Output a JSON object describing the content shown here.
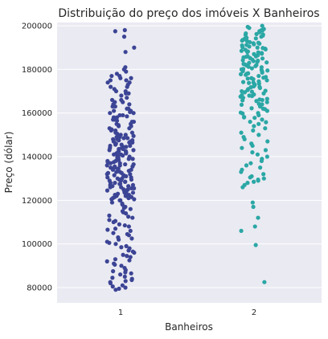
{
  "chart_data": {
    "type": "scatter",
    "title": "Distribuição do preço dos imóveis X Banheiros",
    "xlabel": "Banheiros",
    "ylabel": "Preço (dólar)",
    "ylim": [
      73000,
      201500
    ],
    "yticks": [
      {
        "value": 80000,
        "label": "80000"
      },
      {
        "value": 100000,
        "label": "100000"
      },
      {
        "value": 120000,
        "label": "120000"
      },
      {
        "value": 140000,
        "label": "140000"
      },
      {
        "value": 160000,
        "label": "160000"
      },
      {
        "value": 180000,
        "label": "180000"
      },
      {
        "value": 200000,
        "label": "200000"
      }
    ],
    "categories": [
      "1",
      "2"
    ],
    "grid": true,
    "background_color": "#eaeaf2",
    "series": [
      {
        "category": "1",
        "color": "#3c4495",
        "values": [
          198000,
          197500,
          195000,
          190000,
          188000,
          181000,
          177000,
          176000,
          175000,
          174000,
          172000,
          170000,
          169000,
          166000,
          165000,
          164000,
          163000,
          162000,
          161000,
          160500,
          160000,
          159000,
          158500,
          158000,
          157000,
          156500,
          156000,
          155000,
          154500,
          154000,
          153000,
          152500,
          152000,
          151000,
          150500,
          150000,
          149500,
          149000,
          148500,
          148000,
          147500,
          147000,
          146500,
          146000,
          145500,
          145000,
          144500,
          144000,
          143500,
          143000,
          142500,
          142000,
          141500,
          141000,
          140500,
          140000,
          139500,
          139000,
          138500,
          138000,
          137500,
          137000,
          136500,
          136000,
          135500,
          135000,
          134500,
          134000,
          133500,
          133000,
          132500,
          132000,
          131500,
          131000,
          130500,
          130000,
          129500,
          129000,
          128500,
          128000,
          127500,
          127000,
          126500,
          126000,
          125500,
          125000,
          124500,
          124000,
          123500,
          123000,
          122500,
          122000,
          121500,
          121000,
          120500,
          120000,
          119000,
          118000,
          117000,
          116000,
          115000,
          114000,
          113000,
          112000,
          111000,
          110000,
          109000,
          108000,
          107000,
          106000,
          105000,
          104000,
          103000,
          102000,
          101000,
          100000,
          99000,
          98000,
          97000,
          96000,
          95000,
          94000,
          93000,
          92000,
          91000,
          90000,
          89000,
          88000,
          87000,
          86000,
          85000,
          84000,
          83000,
          82000,
          81000,
          80500,
          80000,
          79500,
          79000,
          150000,
          149000,
          148000,
          147000,
          146000,
          145000,
          144000,
          143000,
          142000,
          141000,
          140000,
          139000,
          138000,
          137000,
          136000,
          135000,
          134000,
          133000,
          132000,
          131000,
          130000,
          129000,
          128000,
          127000,
          126000,
          125000,
          124000,
          123000,
          122000,
          121000,
          120000,
          151000,
          152000,
          153000,
          154000,
          155000,
          156000,
          157000,
          158000,
          159000,
          160000,
          161000,
          162000,
          163000,
          164000,
          165000,
          166000,
          167000,
          168000,
          169000,
          170000,
          171000,
          172000,
          173000,
          174000,
          175000,
          176000,
          177000,
          178000,
          179000,
          180000,
          140500,
          141500,
          142500,
          143500,
          144500,
          145500,
          146500,
          147500,
          148500,
          149500,
          130500,
          131500,
          132500,
          133500,
          134500,
          135500,
          136500,
          137500,
          138500,
          139500,
          120500,
          121500,
          122500,
          123500,
          124500,
          125500,
          126500,
          127500,
          128500,
          129500,
          110500,
          112500,
          114500,
          116500,
          118500,
          100500,
          102500,
          104500,
          106500,
          108500,
          90500,
          92500,
          94500,
          96500,
          98500,
          86500,
          84500,
          82500,
          87500,
          83500
        ]
      },
      {
        "category": "2",
        "color": "#2aa7a5",
        "values": [
          200000,
          199500,
          199000,
          198500,
          198000,
          197500,
          197000,
          196500,
          196000,
          195500,
          195000,
          194500,
          194000,
          193500,
          193000,
          192500,
          192000,
          191500,
          191000,
          190500,
          190000,
          189500,
          189000,
          188500,
          188000,
          187500,
          187000,
          186500,
          186000,
          185500,
          185000,
          184500,
          184000,
          183500,
          183000,
          182500,
          182000,
          181500,
          181000,
          180500,
          180000,
          179500,
          179000,
          178500,
          178000,
          177500,
          177000,
          176500,
          176000,
          175500,
          175000,
          174500,
          174000,
          173500,
          173000,
          172500,
          172000,
          171500,
          171000,
          170500,
          170000,
          169500,
          169000,
          168500,
          168000,
          167500,
          167000,
          166500,
          166000,
          165500,
          165000,
          164000,
          163000,
          162000,
          161000,
          160000,
          159000,
          158000,
          157000,
          156000,
          155000,
          154000,
          153000,
          152000,
          151000,
          150000,
          149000,
          148000,
          147000,
          146000,
          145000,
          144000,
          143000,
          142000,
          141000,
          140000,
          139000,
          138000,
          137000,
          136000,
          135000,
          134000,
          133000,
          132000,
          131000,
          130000,
          129000,
          128000,
          127000,
          126000,
          196200,
          194200,
          192200,
          190200,
          188200,
          186200,
          184200,
          182200,
          180200,
          178200,
          176200,
          174200,
          172200,
          170200,
          168200,
          166200,
          164200,
          162200,
          160200,
          158200,
          193800,
          191800,
          189800,
          187800,
          185800,
          183800,
          181800,
          179800,
          177800,
          175800,
          173800,
          171800,
          169800,
          167800,
          165800,
          163800,
          161800,
          159800,
          157800,
          155800,
          197800,
          195800,
          193200,
          191200,
          189200,
          187200,
          185200,
          183200,
          181200,
          179200,
          130500,
          129500,
          128500,
          119000,
          117000,
          112000,
          108000,
          106000,
          99500,
          82500
        ]
      }
    ]
  }
}
